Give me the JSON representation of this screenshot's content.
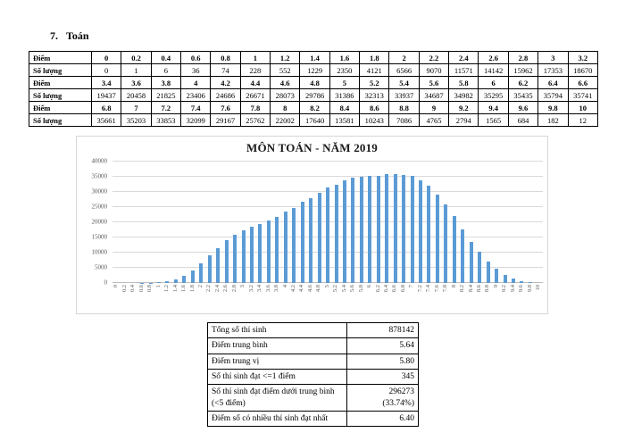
{
  "page": {
    "heading_number": "7.",
    "heading_title": "Toán"
  },
  "score_table": {
    "score_label": "Điểm",
    "count_label": "Số lượng",
    "groups": [
      {
        "scores": [
          "0",
          "0.2",
          "0.4",
          "0.6",
          "0.8",
          "1",
          "1.2",
          "1.4",
          "1.6",
          "1.8",
          "2",
          "2.2",
          "2.4",
          "2.6",
          "2.8",
          "3",
          "3.2"
        ],
        "counts": [
          "0",
          "1",
          "6",
          "36",
          "74",
          "228",
          "552",
          "1229",
          "2350",
          "4121",
          "6566",
          "9070",
          "11571",
          "14142",
          "15962",
          "17353",
          "18670"
        ]
      },
      {
        "scores": [
          "3.4",
          "3.6",
          "3.8",
          "4",
          "4.2",
          "4.4",
          "4.6",
          "4.8",
          "5",
          "5.2",
          "5.4",
          "5.6",
          "5.8",
          "6",
          "6.2",
          "6.4",
          "6.6"
        ],
        "counts": [
          "19437",
          "20458",
          "21825",
          "23406",
          "24686",
          "26671",
          "28073",
          "29786",
          "31386",
          "32313",
          "33937",
          "34687",
          "34982",
          "35295",
          "35435",
          "35794",
          "35741"
        ]
      },
      {
        "scores": [
          "6.8",
          "7",
          "7.2",
          "7.4",
          "7.6",
          "7.8",
          "8",
          "8.2",
          "8.4",
          "8.6",
          "8.8",
          "9",
          "9.2",
          "9.4",
          "9.6",
          "9.8",
          "10"
        ],
        "counts": [
          "35661",
          "35203",
          "33853",
          "32099",
          "29167",
          "25762",
          "22002",
          "17640",
          "13581",
          "10243",
          "7086",
          "4765",
          "2794",
          "1565",
          "684",
          "182",
          "12"
        ]
      }
    ]
  },
  "chart_data": {
    "type": "bar",
    "title": "MÔN TOÁN - NĂM 2019",
    "categories": [
      "0",
      "0.2",
      "0.4",
      "0.6",
      "0.8",
      "1",
      "1.2",
      "1.4",
      "1.6",
      "1.8",
      "2",
      "2.2",
      "2.4",
      "2.6",
      "2.8",
      "3",
      "3.2",
      "3.4",
      "3.6",
      "3.8",
      "4",
      "4.2",
      "4.4",
      "4.6",
      "4.8",
      "5",
      "5.2",
      "5.4",
      "5.6",
      "5.8",
      "6",
      "6.2",
      "6.4",
      "6.6",
      "6.8",
      "7",
      "7.2",
      "7.4",
      "7.6",
      "7.8",
      "8",
      "8.2",
      "8.4",
      "8.6",
      "8.8",
      "9",
      "9.2",
      "9.4",
      "9.6",
      "9.8",
      "10"
    ],
    "values": [
      0,
      1,
      6,
      36,
      74,
      228,
      552,
      1229,
      2350,
      4121,
      6566,
      9070,
      11571,
      14142,
      15962,
      17353,
      18670,
      19437,
      20458,
      21825,
      23406,
      24686,
      26671,
      28073,
      29786,
      31386,
      32313,
      33937,
      34687,
      34982,
      35295,
      35435,
      35794,
      35741,
      35661,
      35203,
      33853,
      32099,
      29167,
      25762,
      22002,
      17640,
      13581,
      10243,
      7086,
      4765,
      2794,
      1565,
      684,
      182,
      12
    ],
    "xlabel": "",
    "ylabel": "",
    "ylim": [
      0,
      40000
    ],
    "yticks": [
      0,
      5000,
      10000,
      15000,
      20000,
      25000,
      30000,
      35000,
      40000
    ],
    "grid": true,
    "legend": false,
    "bar_color": "#5b9bd5",
    "gridline_color": "#d9d9d9",
    "axis_text_color": "#595959"
  },
  "summary_table": {
    "rows": [
      {
        "label": "Tổng số thí sinh",
        "value": "878142"
      },
      {
        "label": "Điểm trung bình",
        "value": "5.64"
      },
      {
        "label": "Điểm trung vị",
        "value": "5.80"
      },
      {
        "label": "Số thí sinh đạt <=1 điểm",
        "value": "345"
      },
      {
        "label": "Số thí sinh đạt điểm dưới trung bình\n(<5 điểm)",
        "value": "296273\n(33.74%)"
      },
      {
        "label": "Điểm số có nhiều thí sinh đạt nhất",
        "value": "6.40"
      }
    ]
  }
}
